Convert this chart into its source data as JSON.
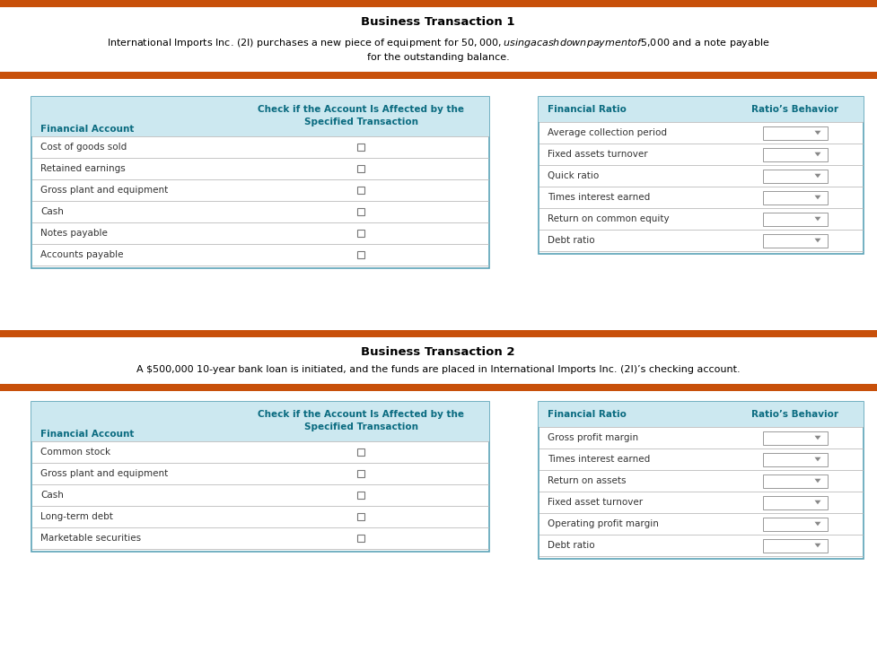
{
  "bg_color": "#ffffff",
  "orange_bar_color": "#c8500a",
  "title1": "Business Transaction 1",
  "desc1_line1": "International Imports Inc. (2I) purchases a new piece of equipment for $50,000, using a cash down payment of $5,000 and a note payable",
  "desc1_line2": "for the outstanding balance.",
  "title2": "Business Transaction 2",
  "desc2": "A $500,000 10-year bank loan is initiated, and the funds are placed in International Imports Inc. (2I)’s checking account.",
  "table1_header1": "Financial Account",
  "table1_header2_line1": "Check if the Account Is Affected by the",
  "table1_header2_line2": "Specified Transaction",
  "table1_rows": [
    "Cost of goods sold",
    "Retained earnings",
    "Gross plant and equipment",
    "Cash",
    "Notes payable",
    "Accounts payable"
  ],
  "table2_header1": "Financial Ratio",
  "table2_header2": "Ratio’s Behavior",
  "table2_rows": [
    "Average collection period",
    "Fixed assets turnover",
    "Quick ratio",
    "Times interest earned",
    "Return on common equity",
    "Debt ratio"
  ],
  "table3_header1": "Financial Account",
  "table3_header2_line1": "Check if the Account Is Affected by the",
  "table3_header2_line2": "Specified Transaction",
  "table3_rows": [
    "Common stock",
    "Gross plant and equipment",
    "Cash",
    "Long-term debt",
    "Marketable securities"
  ],
  "table4_header1": "Financial Ratio",
  "table4_header2": "Ratio’s Behavior",
  "table4_rows": [
    "Gross profit margin",
    "Times interest earned",
    "Return on assets",
    "Fixed asset turnover",
    "Operating profit margin",
    "Debt ratio"
  ],
  "table_header_bg": "#cce8f0",
  "table_border_color": "#5ba3b8",
  "table_row_line_color": "#bbbbbb",
  "header_text_color": "#0a6b80",
  "body_text_color": "#333333",
  "checkbox_border_color": "#777777",
  "dropdown_border_color": "#999999",
  "dropdown_arrow_color": "#888888"
}
